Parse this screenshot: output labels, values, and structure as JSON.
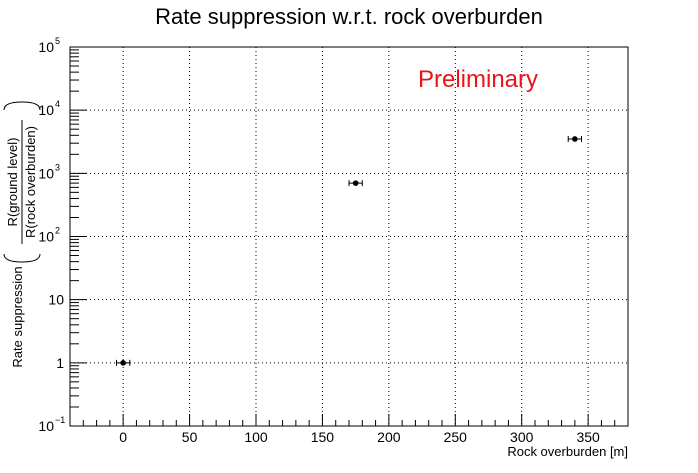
{
  "chart_data": {
    "type": "scatter",
    "title": "Rate suppression w.r.t. rock overburden",
    "xlabel": "Rock overburden [m]",
    "ylabel_prefix": "Rate suppression",
    "ylabel_numerator": "R(ground level)",
    "ylabel_denominator": "R(rock overburden)",
    "annotation": "Preliminary",
    "annotation_color": "#e8141a",
    "xlim": [
      -40,
      380
    ],
    "ylim": [
      0.1,
      100000
    ],
    "yscale": "log",
    "grid": true,
    "x_ticks": [
      0,
      50,
      100,
      150,
      200,
      250,
      300,
      350
    ],
    "x_tick_labels": [
      "0",
      "50",
      "100",
      "150",
      "200",
      "250",
      "300",
      "350"
    ],
    "y_tick_labels": [
      {
        "value": 0.1,
        "base": "10",
        "exp": "−1"
      },
      {
        "value": 1,
        "base": "1",
        "exp": ""
      },
      {
        "value": 10,
        "base": "10",
        "exp": ""
      },
      {
        "value": 100,
        "base": "10",
        "exp": "2"
      },
      {
        "value": 1000,
        "base": "10",
        "exp": "3"
      },
      {
        "value": 10000,
        "base": "10",
        "exp": "4"
      },
      {
        "value": 100000,
        "base": "10",
        "exp": "5"
      }
    ],
    "points": [
      {
        "x": 0,
        "y": 1,
        "xerr": 5
      },
      {
        "x": 175,
        "y": 700,
        "xerr": 5
      },
      {
        "x": 340,
        "y": 3500,
        "xerr": 5
      }
    ]
  }
}
